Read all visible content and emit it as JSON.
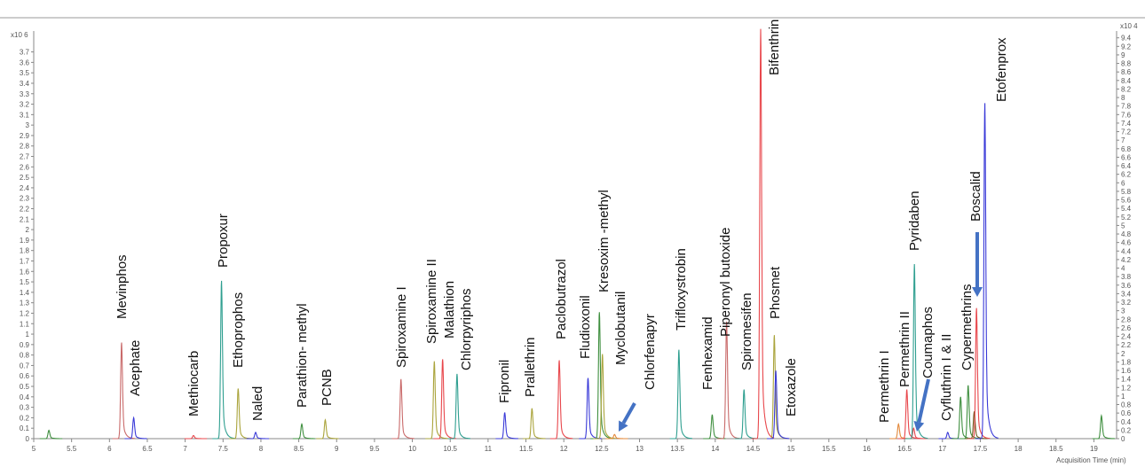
{
  "chart_data": {
    "type": "line",
    "title": "",
    "xlabel": "Acquisition Time (min)",
    "ylabel_left_multiplier": "x10 6",
    "ylabel_right_multiplier": "x10 4",
    "xlim": [
      5,
      19.3
    ],
    "ylim_left": [
      0,
      3.9
    ],
    "ylim_right": [
      0,
      9.56
    ],
    "x_ticks": [
      5,
      5.5,
      6,
      6.5,
      7,
      7.5,
      8,
      8.5,
      9,
      9.5,
      10,
      10.5,
      11,
      11.5,
      12,
      12.5,
      13,
      13.5,
      14,
      14.5,
      15,
      15.5,
      16,
      16.5,
      17,
      17.5,
      18,
      18.5,
      19
    ],
    "y_ticks_left": [
      0,
      0.1,
      0.2,
      0.3,
      0.4,
      0.5,
      0.6,
      0.7,
      0.8,
      0.9,
      1,
      1.1,
      1.2,
      1.3,
      1.4,
      1.5,
      1.6,
      1.7,
      1.8,
      1.9,
      2,
      2.1,
      2.2,
      2.3,
      2.4,
      2.5,
      2.6,
      2.7,
      2.8,
      2.9,
      3,
      3.1,
      3.2,
      3.3,
      3.4,
      3.5,
      3.6,
      3.7
    ],
    "y_ticks_right": [
      0,
      0.2,
      0.4,
      0.6,
      0.8,
      1,
      1.2,
      1.4,
      1.6,
      1.8,
      2,
      2.2,
      2.4,
      2.6,
      2.8,
      3,
      3.2,
      3.4,
      3.6,
      3.8,
      4,
      4.2,
      4.4,
      4.6,
      4.8,
      5,
      5.2,
      5.4,
      5.6,
      5.8,
      6,
      6.2,
      6.4,
      6.6,
      6.8,
      7,
      7.2,
      7.4,
      7.6,
      7.8,
      8,
      8.2,
      8.4,
      8.6,
      8.8,
      9,
      9.2,
      9.4
    ],
    "grid": false,
    "colors": {
      "red": "#e8474c",
      "rose": "#c96a6a",
      "blue": "#3a3ad8",
      "teal": "#2f9f90",
      "olive": "#aaa43c",
      "green": "#3f8f3f",
      "orange": "#e3883a",
      "darkolive": "#6d5a1e",
      "arrow": "#4472c4",
      "frame": "#888888"
    },
    "peaks": [
      {
        "label": "",
        "time": 5.2,
        "height": 0.08,
        "color": "green"
      },
      {
        "label": "Mevinphos",
        "time": 6.16,
        "height": 0.92,
        "color": "rose"
      },
      {
        "label": "Acephate",
        "time": 6.32,
        "height": 0.2,
        "color": "blue"
      },
      {
        "label": "Methiocarb",
        "time": 7.11,
        "height": 0.03,
        "color": "red"
      },
      {
        "label": "Propoxur",
        "time": 7.48,
        "height": 1.51,
        "color": "teal"
      },
      {
        "label": "Ethoprophos",
        "time": 7.7,
        "height": 0.48,
        "color": "olive"
      },
      {
        "label": "Naled",
        "time": 7.93,
        "height": 0.06,
        "color": "blue"
      },
      {
        "label": "Parathion- methyl",
        "time": 8.54,
        "height": 0.14,
        "color": "green"
      },
      {
        "label": "PCNB",
        "time": 8.85,
        "height": 0.18,
        "color": "olive"
      },
      {
        "label": "Spiroxamine I",
        "time": 9.85,
        "height": 0.57,
        "color": "rose"
      },
      {
        "label": "Spiroxamine II",
        "time": 10.29,
        "height": 0.74,
        "color": "olive"
      },
      {
        "label": "Malathion",
        "time": 10.4,
        "height": 0.76,
        "color": "red"
      },
      {
        "label": "Chlorpyriphos",
        "time": 10.59,
        "height": 0.62,
        "color": "teal"
      },
      {
        "label": "Fipronil",
        "time": 11.22,
        "height": 0.25,
        "color": "blue"
      },
      {
        "label": "Prallethrin",
        "time": 11.58,
        "height": 0.29,
        "color": "olive"
      },
      {
        "label": "Paclobutrazol",
        "time": 11.94,
        "height": 0.75,
        "color": "red"
      },
      {
        "label": "Fludioxonil",
        "time": 12.32,
        "height": 0.58,
        "color": "blue"
      },
      {
        "label": "Kresoxim -methyl",
        "time": 12.47,
        "height": 1.21,
        "color": "green"
      },
      {
        "label": "Myclobutanil",
        "time": 12.51,
        "height": 0.81,
        "color": "olive"
      },
      {
        "label": "Chlorfenapyr",
        "time": 12.67,
        "height": 0.04,
        "color": "orange"
      },
      {
        "label": "Trifloxystrobin",
        "time": 13.52,
        "height": 0.85,
        "color": "teal"
      },
      {
        "label": "Fenhexamid",
        "time": 13.96,
        "height": 0.23,
        "color": "green"
      },
      {
        "label": "Piperonyl butoxide",
        "time": 14.15,
        "height": 1.12,
        "color": "rose"
      },
      {
        "label": "Spiromesifen",
        "time": 14.38,
        "height": 0.47,
        "color": "teal"
      },
      {
        "label": "Bifenthrin",
        "time": 14.6,
        "height": 3.92,
        "color": "red"
      },
      {
        "label": "Phosmet",
        "time": 14.78,
        "height": 0.99,
        "color": "olive"
      },
      {
        "label": "Etoxazole",
        "time": 14.8,
        "height": 0.65,
        "color": "blue"
      },
      {
        "label": "Permethrin I",
        "time": 16.42,
        "height": 0.14,
        "color": "orange"
      },
      {
        "label": "Permethrin II",
        "time": 16.53,
        "height": 0.47,
        "color": "red"
      },
      {
        "label": "Coumaphos",
        "time": 16.62,
        "height": 0.1,
        "color": "red"
      },
      {
        "label": "Pyridaben",
        "time": 16.63,
        "height": 1.67,
        "color": "teal"
      },
      {
        "label": "",
        "time": 17.07,
        "height": 0.06,
        "color": "blue"
      },
      {
        "label": "Cyfluthrin I & II",
        "time": 17.24,
        "height": 0.4,
        "color": "green"
      },
      {
        "label": "Cypermethrins",
        "time": 17.34,
        "height": 0.51,
        "color": "green"
      },
      {
        "label": "",
        "time": 17.42,
        "height": 0.26,
        "color": "darkolive"
      },
      {
        "label": "Boscalid",
        "time": 17.45,
        "height": 1.25,
        "color": "red"
      },
      {
        "label": "Etofenprox",
        "time": 17.56,
        "height": 3.21,
        "color": "blue"
      },
      {
        "label": "",
        "time": 19.1,
        "height": 0.22,
        "color": "green"
      }
    ],
    "annotations": [
      {
        "type": "arrow",
        "points_to": "Chlorfenapyr"
      },
      {
        "type": "arrow",
        "points_to": "Coumaphos"
      },
      {
        "type": "arrow",
        "points_to": "Boscalid"
      }
    ]
  }
}
